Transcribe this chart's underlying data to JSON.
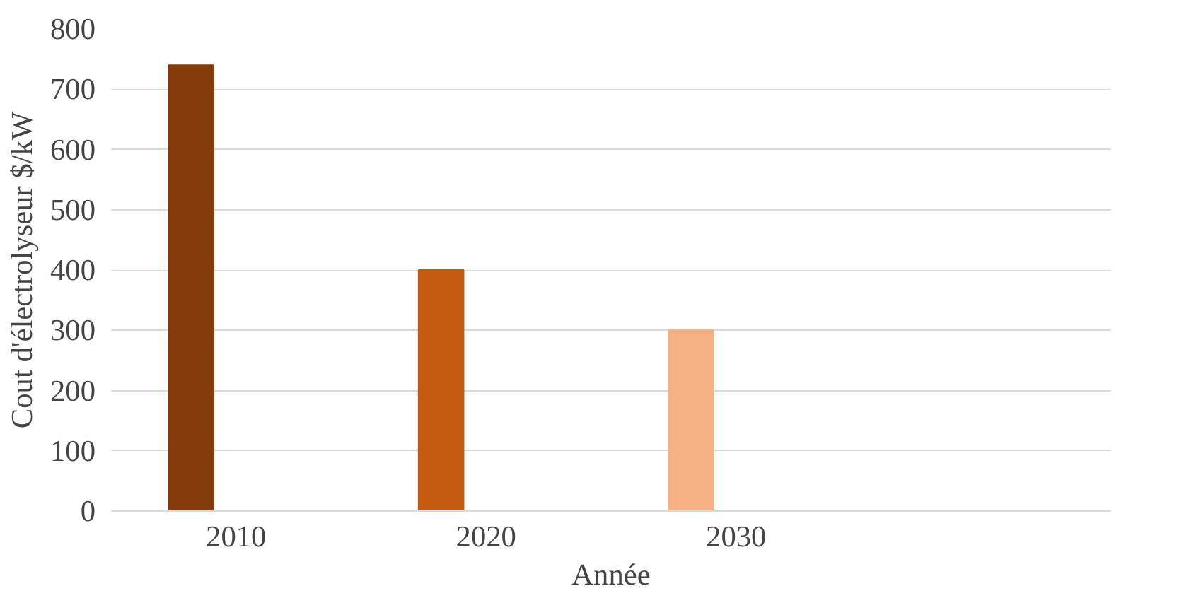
{
  "chart_data": {
    "type": "bar",
    "xlabel": "Année",
    "ylabel": "Cout d'électrolyseur $/kW",
    "categories": [
      "2010",
      "2020",
      "2030",
      null
    ],
    "values": [
      740,
      400,
      300,
      null
    ],
    "colors": [
      "#843c0c",
      "#c55a11",
      "#f4b183",
      "#f4b183"
    ],
    "ylim": [
      0,
      800
    ],
    "yticks": [
      0,
      100,
      200,
      300,
      400,
      500,
      600,
      700,
      800
    ],
    "grid": "y"
  }
}
